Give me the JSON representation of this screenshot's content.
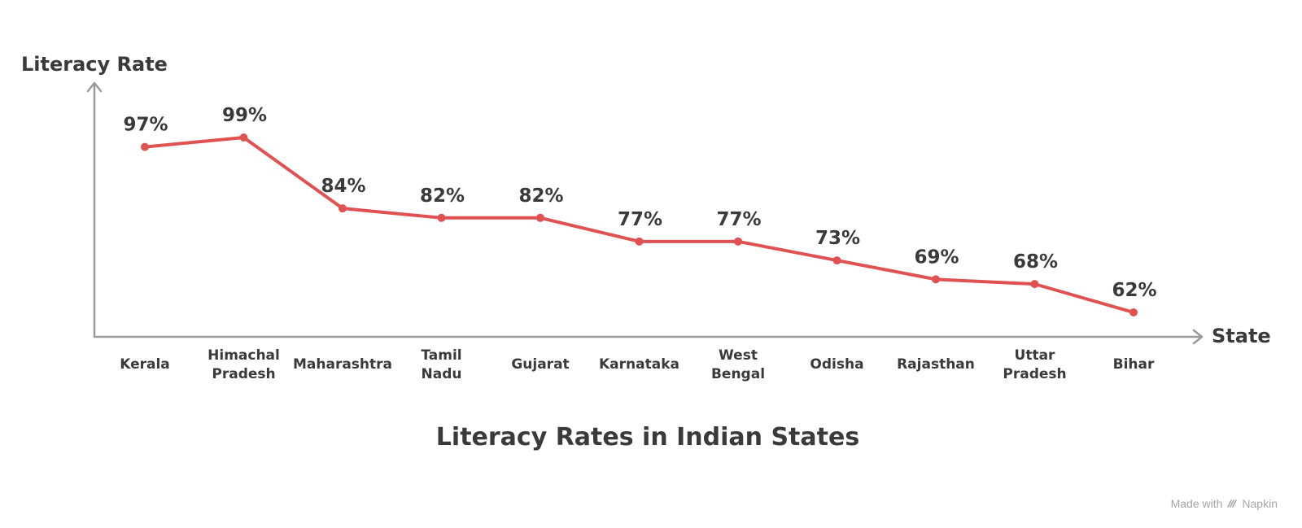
{
  "chart_data": {
    "type": "line",
    "title": "Literacy Rates in Indian States",
    "xlabel": "State",
    "ylabel": "Literacy Rate",
    "ylim": [
      50,
      100
    ],
    "grid": false,
    "legend": "none",
    "line_color": "#e05252",
    "categories": [
      [
        "Kerala"
      ],
      [
        "Himachal",
        "Pradesh"
      ],
      [
        "Maharashtra"
      ],
      [
        "Tamil",
        "Nadu"
      ],
      [
        "Gujarat"
      ],
      [
        "Karnataka"
      ],
      [
        "West",
        "Bengal"
      ],
      [
        "Odisha"
      ],
      [
        "Rajasthan"
      ],
      [
        "Uttar",
        "Pradesh"
      ],
      [
        "Bihar"
      ]
    ],
    "series": [
      {
        "values": [
          97,
          99,
          84,
          82,
          82,
          77,
          77,
          73,
          69,
          68,
          62
        ],
        "labels": [
          "97%",
          "99%",
          "84%",
          "82%",
          "82%",
          "77%",
          "77%",
          "73%",
          "69%",
          "68%",
          "62%"
        ]
      }
    ]
  },
  "watermark": {
    "prefix": "Made with",
    "brand": "Napkin",
    "icon": "napkin-logo-icon"
  }
}
